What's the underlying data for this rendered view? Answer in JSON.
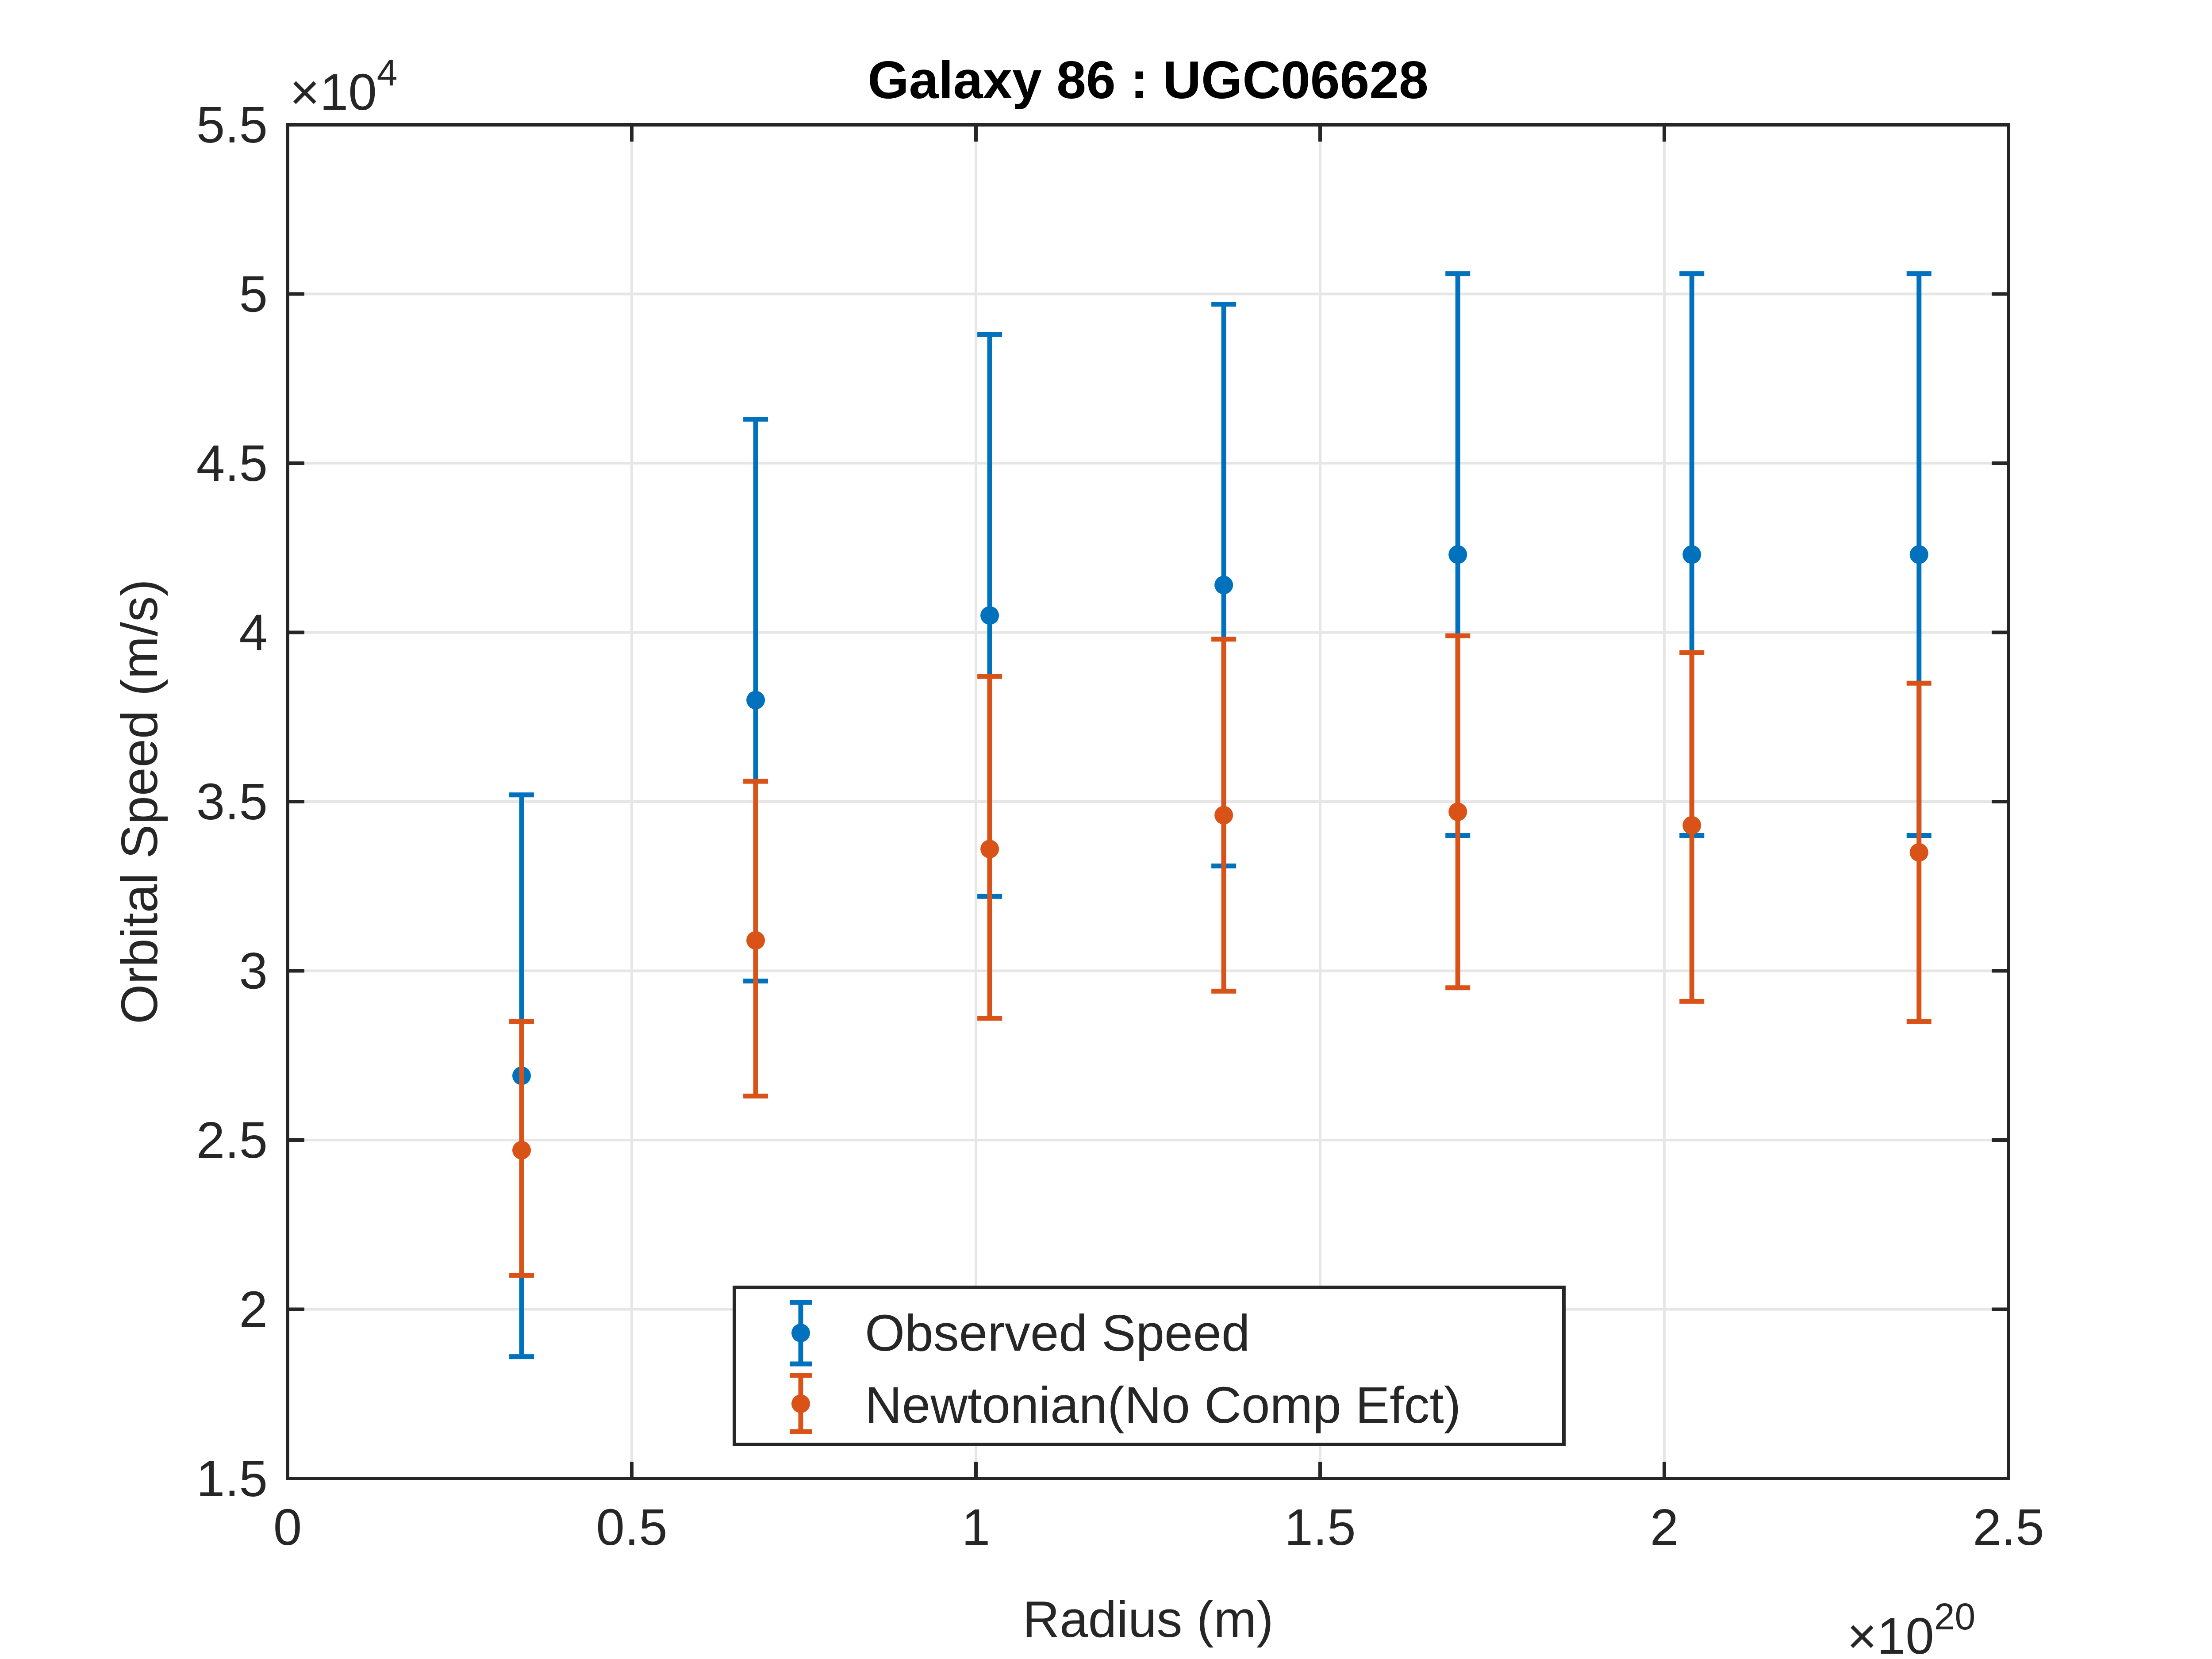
{
  "chart_data": {
    "type": "scatter",
    "title": "Galaxy 86 : UGC06628",
    "xlabel": "Radius (m)",
    "ylabel": "Orbital Speed (m/s)",
    "xlim": [
      0,
      2.5e+20
    ],
    "ylim": [
      15000,
      55000
    ],
    "x_ticks": [
      0,
      5e+19,
      1e+20,
      1.5e+20,
      2e+20,
      2.5e+20
    ],
    "x_tick_labels": [
      "0",
      "0.5",
      "1",
      "1.5",
      "2",
      "2.5"
    ],
    "y_ticks": [
      15000,
      20000,
      25000,
      30000,
      35000,
      40000,
      45000,
      50000,
      55000
    ],
    "y_tick_labels": [
      "1.5",
      "2",
      "2.5",
      "3",
      "3.5",
      "4",
      "4.5",
      "5",
      "5.5"
    ],
    "x_exponent_label": {
      "base": "×10",
      "exp": "20"
    },
    "y_exponent_label": {
      "base": "×10",
      "exp": "4"
    },
    "grid": true,
    "legend_position": "bottom-center",
    "x": [
      3.4e+19,
      6.8e+19,
      1.02e+20,
      1.36e+20,
      1.7e+20,
      2.04e+20,
      2.37e+20
    ],
    "series": [
      {
        "name": "Observed Speed",
        "color": "#0072BD",
        "values": [
          26900,
          38000,
          40500,
          41400,
          42300,
          42300,
          42300
        ],
        "lower": [
          18600,
          29700,
          32200,
          33100,
          34000,
          34000,
          34000
        ],
        "upper": [
          35200,
          46300,
          48800,
          49700,
          50600,
          50600,
          50600
        ]
      },
      {
        "name": "Newtonian(No Comp Efct)",
        "color": "#D95319",
        "values": [
          24700,
          30900,
          33600,
          34600,
          34700,
          34300,
          33500
        ],
        "lower": [
          21000,
          26300,
          28600,
          29400,
          29500,
          29100,
          28500
        ],
        "upper": [
          28500,
          35600,
          38700,
          39800,
          39900,
          39400,
          38500
        ]
      }
    ]
  }
}
